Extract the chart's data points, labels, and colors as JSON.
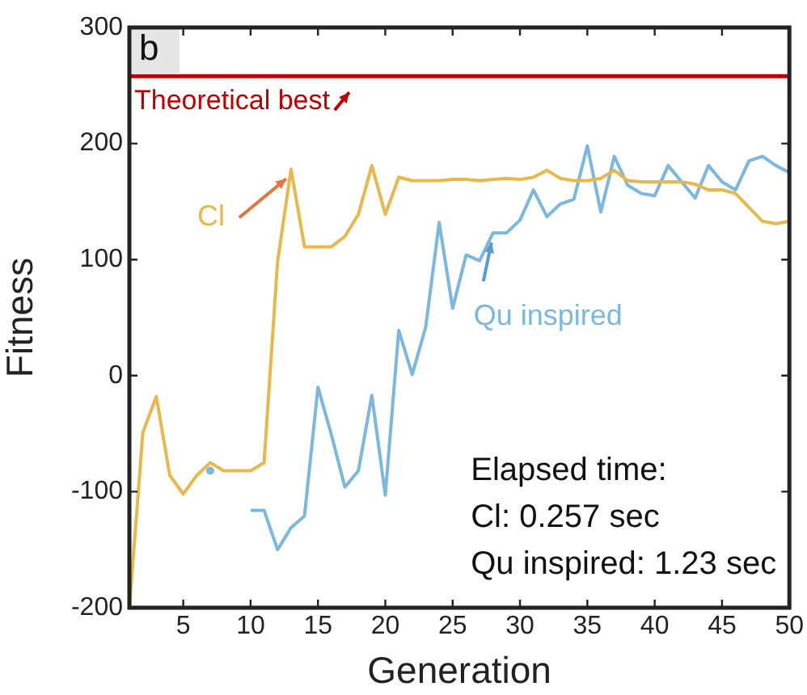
{
  "chart_data": {
    "type": "line",
    "xlabel": "Generation",
    "ylabel": "Fitness",
    "x": [
      1,
      2,
      3,
      4,
      5,
      6,
      7,
      8,
      9,
      10,
      11,
      12,
      13,
      14,
      15,
      16,
      17,
      18,
      19,
      20,
      21,
      22,
      23,
      24,
      25,
      26,
      27,
      28,
      29,
      30,
      31,
      32,
      33,
      34,
      35,
      36,
      37,
      38,
      39,
      40,
      41,
      42,
      43,
      44,
      45,
      46,
      47,
      48,
      49,
      50
    ],
    "series": [
      {
        "name": "Cl",
        "color": "#e8b84a",
        "values": [
          -200,
          -49,
          -18,
          -86,
          -102,
          -86,
          -75,
          -82,
          -82,
          -82,
          -75,
          98,
          178,
          111,
          111,
          111,
          120,
          139,
          181,
          139,
          171,
          168,
          168,
          168,
          169,
          169,
          168,
          169,
          170,
          169,
          171,
          177,
          170,
          168,
          168,
          170,
          177,
          168,
          167,
          167,
          167,
          167,
          165,
          160,
          160,
          157,
          145,
          133,
          131,
          133
        ]
      },
      {
        "name": "Qu inspired",
        "color": "#7ab8e0",
        "values": [
          null,
          null,
          null,
          null,
          null,
          null,
          -82,
          null,
          null,
          -116,
          -116,
          -150,
          -131,
          -121,
          -10,
          -51,
          -96,
          -82,
          -17,
          -103,
          39,
          1,
          42,
          132,
          58,
          104,
          99,
          123,
          123,
          134,
          160,
          137,
          148,
          152,
          198,
          141,
          189,
          164,
          157,
          155,
          181,
          167,
          153,
          181,
          167,
          160,
          185,
          189,
          181,
          175
        ]
      }
    ],
    "xlim": [
      1,
      50
    ],
    "xticks": [
      5,
      10,
      15,
      20,
      25,
      30,
      35,
      40,
      45,
      50
    ],
    "ylim": [
      -200,
      300
    ],
    "yticks": [
      -200,
      -100,
      0,
      100,
      200,
      300
    ],
    "ref_lines": [
      {
        "axis": "y",
        "value": 258,
        "label": "Theoretical best",
        "color": "#c00000"
      }
    ],
    "annotations": [
      "b",
      "Elapsed time:\nCl: 0.257 sec\nQu inspired: 1.23 sec"
    ],
    "marker": "none",
    "line_style": "solid",
    "legend": false
  }
}
